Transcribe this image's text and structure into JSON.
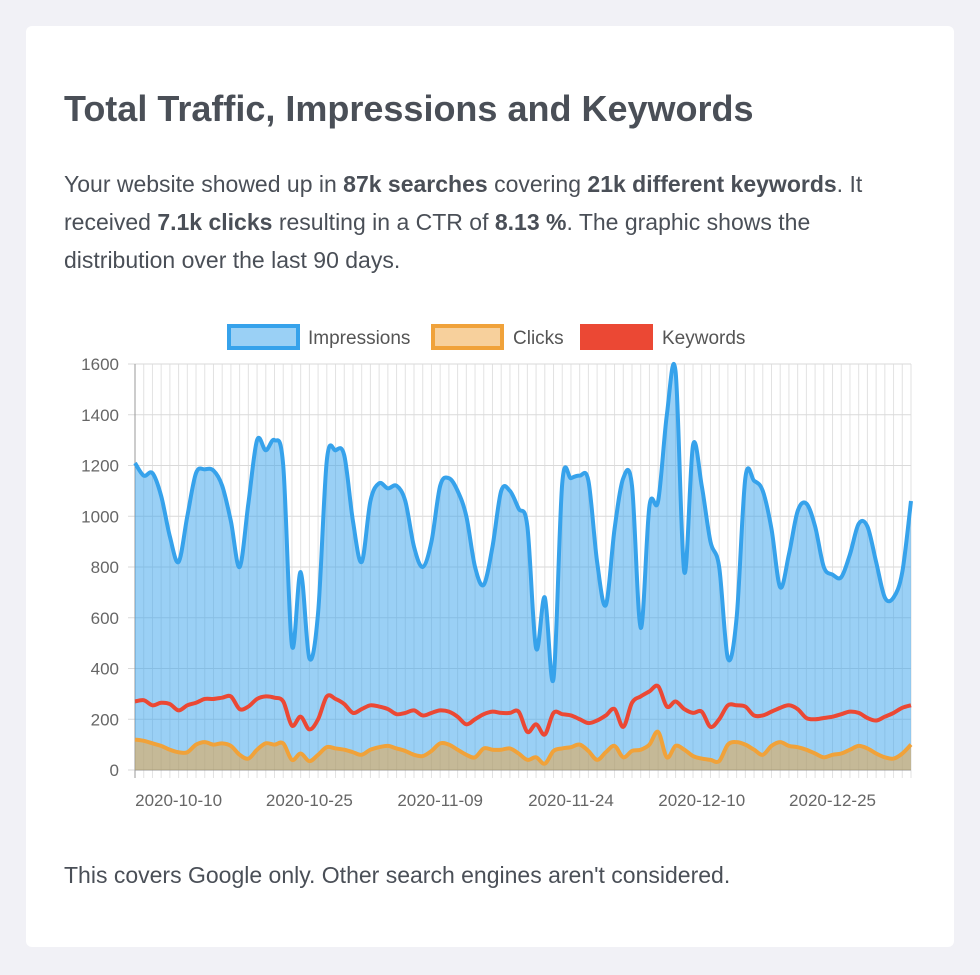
{
  "title": "Total Traffic, Impressions and Keywords",
  "intro": {
    "t1": "Your website showed up in ",
    "b1": "87k searches",
    "t2": " covering ",
    "b2": "21k different keywords",
    "t3": ". It received ",
    "b3": "7.1k clicks",
    "t4": " resulting in a CTR of ",
    "b4": "8.13 %",
    "t5": ". The graphic shows the distribution over the last 90 days."
  },
  "footer": "This covers Google only. Other search engines aren't considered.",
  "chart_data": {
    "type": "area",
    "title": "",
    "xlabel": "",
    "ylabel": "",
    "ylim": [
      0,
      1600
    ],
    "yticks": [
      0,
      200,
      400,
      600,
      800,
      1000,
      1200,
      1400,
      1600
    ],
    "xtick_labels": [
      "2020-10-10",
      "2020-10-25",
      "2020-11-09",
      "2020-11-24",
      "2020-12-10",
      "2020-12-25"
    ],
    "xtick_indices": [
      5,
      20,
      35,
      50,
      65,
      80
    ],
    "grid": true,
    "legend_position": "top",
    "colors": {
      "impressions": "#36a2eb",
      "clicks": "#f0a23a",
      "keywords": "#eb4834"
    },
    "series": [
      {
        "name": "Impressions",
        "values": [
          1210,
          1160,
          1170,
          1080,
          920,
          820,
          1000,
          1170,
          1185,
          1180,
          1120,
          980,
          800,
          1050,
          1300,
          1260,
          1300,
          1200,
          490,
          780,
          440,
          620,
          1220,
          1260,
          1240,
          980,
          820,
          1060,
          1130,
          1110,
          1120,
          1060,
          880,
          800,
          900,
          1120,
          1150,
          1100,
          1000,
          800,
          730,
          880,
          1100,
          1100,
          1030,
          960,
          480,
          680,
          360,
          1130,
          1150,
          1160,
          1140,
          820,
          650,
          950,
          1150,
          1120,
          560,
          1040,
          1060,
          1400,
          1570,
          780,
          1280,
          1120,
          900,
          800,
          440,
          600,
          1150,
          1140,
          1100,
          950,
          720,
          850,
          1020,
          1050,
          960,
          800,
          770,
          760,
          850,
          970,
          960,
          820,
          680,
          680,
          780,
          1060
        ]
      },
      {
        "name": "Clicks",
        "values": [
          120,
          115,
          105,
          95,
          80,
          70,
          70,
          100,
          110,
          100,
          105,
          95,
          60,
          45,
          80,
          105,
          100,
          105,
          40,
          65,
          35,
          60,
          90,
          85,
          80,
          70,
          60,
          80,
          90,
          95,
          85,
          75,
          60,
          55,
          75,
          105,
          100,
          80,
          60,
          50,
          85,
          80,
          80,
          85,
          65,
          40,
          50,
          25,
          75,
          85,
          90,
          100,
          75,
          40,
          70,
          95,
          50,
          75,
          80,
          100,
          150,
          50,
          95,
          80,
          55,
          45,
          40,
          35,
          100,
          110,
          100,
          80,
          60,
          95,
          110,
          95,
          90,
          80,
          65,
          50,
          60,
          65,
          80,
          95,
          85,
          65,
          50,
          45,
          65,
          100
        ]
      },
      {
        "name": "Keywords",
        "values": [
          270,
          275,
          255,
          265,
          260,
          235,
          255,
          265,
          280,
          280,
          285,
          290,
          240,
          250,
          280,
          290,
          285,
          270,
          175,
          210,
          160,
          200,
          290,
          280,
          260,
          225,
          240,
          255,
          250,
          240,
          220,
          225,
          235,
          215,
          225,
          235,
          230,
          210,
          180,
          200,
          220,
          230,
          225,
          225,
          230,
          150,
          180,
          140,
          225,
          220,
          215,
          200,
          185,
          195,
          215,
          240,
          170,
          265,
          290,
          310,
          330,
          250,
          270,
          240,
          225,
          230,
          170,
          200,
          255,
          255,
          250,
          215,
          215,
          230,
          245,
          255,
          240,
          205,
          200,
          205,
          210,
          220,
          230,
          225,
          205,
          195,
          210,
          225,
          245,
          255
        ]
      }
    ]
  }
}
